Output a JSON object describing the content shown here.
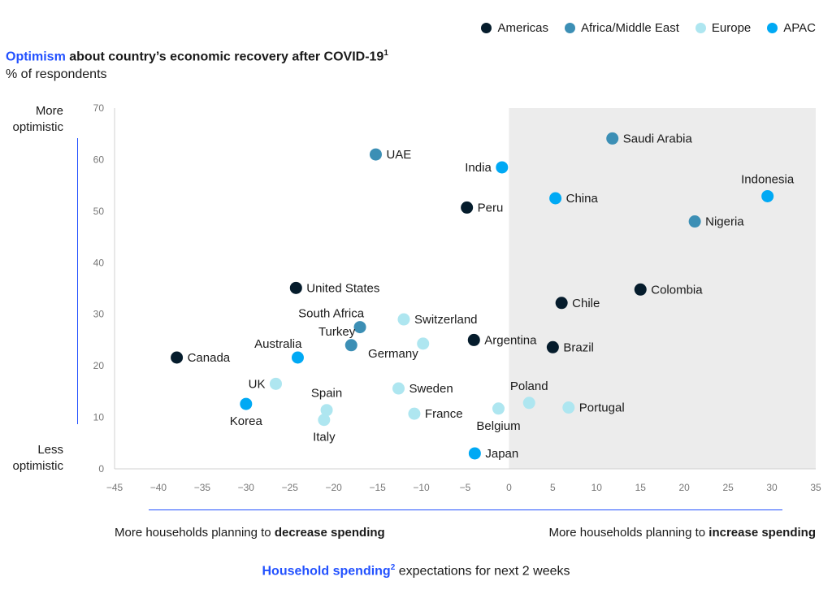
{
  "chart_data": {
    "type": "scatter",
    "title_highlight": "Optimism",
    "title_rest": " about country’s economic recovery after COVID-19",
    "title_sup": "1",
    "subtitle": "% of respondents",
    "y_top_label": "More optimistic",
    "y_bottom_label": "Less optimistic",
    "x_left_prefix": "More households planning to ",
    "x_left_bold": "decrease spending",
    "x_right_prefix": "More households planning to ",
    "x_right_bold": "increase spending",
    "xlabel_highlight": "Household spending",
    "xlabel_sup": "2",
    "xlabel_rest": " expectations for next 2 weeks",
    "xlim": [
      -45,
      35
    ],
    "ylim": [
      0,
      70
    ],
    "xticks": [
      -45,
      -40,
      -35,
      -30,
      -25,
      -20,
      -15,
      -10,
      -5,
      0,
      5,
      10,
      15,
      20,
      25,
      30,
      35
    ],
    "yticks": [
      0,
      10,
      20,
      30,
      40,
      50,
      60,
      70
    ],
    "xtick_labels": [
      "−45",
      "−40",
      "−35",
      "−30",
      "−25",
      "−20",
      "−15",
      "−10",
      "−5",
      "0",
      "5",
      "10",
      "15",
      "20",
      "25",
      "30",
      "35"
    ],
    "ytick_labels": [
      "0",
      "10",
      "20",
      "30",
      "40",
      "50",
      "60",
      "70"
    ],
    "shaded_region_x": [
      0,
      35
    ],
    "colors": {
      "Americas": "#051c2c",
      "Africa/Middle East": "#3c8fb5",
      "Europe": "#aee6f0",
      "APAC": "#00a9f4",
      "shade": "#ececec",
      "accent": "#2251ff"
    },
    "legend": [
      "Americas",
      "Africa/Middle East",
      "Europe",
      "APAC"
    ],
    "points": [
      {
        "label": "Saudi Arabia",
        "region": "Africa/Middle East",
        "x": 11.8,
        "y": 64.1,
        "pos": "right"
      },
      {
        "label": "UAE",
        "region": "Africa/Middle East",
        "x": -15.2,
        "y": 61.0,
        "pos": "right"
      },
      {
        "label": "India",
        "region": "APAC",
        "x": -0.8,
        "y": 58.5,
        "pos": "left"
      },
      {
        "label": "Indonesia",
        "region": "APAC",
        "x": 29.5,
        "y": 52.9,
        "pos": "above"
      },
      {
        "label": "China",
        "region": "APAC",
        "x": 5.3,
        "y": 52.5,
        "pos": "right"
      },
      {
        "label": "Peru",
        "region": "Americas",
        "x": -4.8,
        "y": 50.7,
        "pos": "right"
      },
      {
        "label": "Nigeria",
        "region": "Africa/Middle East",
        "x": 21.2,
        "y": 48.0,
        "pos": "right"
      },
      {
        "label": "United States",
        "region": "Americas",
        "x": -24.3,
        "y": 35.1,
        "pos": "right"
      },
      {
        "label": "Colombia",
        "region": "Americas",
        "x": 15.0,
        "y": 34.8,
        "pos": "right"
      },
      {
        "label": "Chile",
        "region": "Americas",
        "x": 6.0,
        "y": 32.2,
        "pos": "right"
      },
      {
        "label": "Switzerland",
        "region": "Europe",
        "x": -12.0,
        "y": 29.0,
        "pos": "right"
      },
      {
        "label": "South Africa",
        "region": "Africa/Middle East",
        "x": -17.0,
        "y": 27.5,
        "pos": "aboveleft"
      },
      {
        "label": "Argentina",
        "region": "Americas",
        "x": -4.0,
        "y": 25.0,
        "pos": "right"
      },
      {
        "label": "Germany",
        "region": "Europe",
        "x": -9.8,
        "y": 24.3,
        "pos": "belowleft"
      },
      {
        "label": "Turkey",
        "region": "Africa/Middle East",
        "x": -18.0,
        "y": 24.0,
        "pos": "aboveleft"
      },
      {
        "label": "Brazil",
        "region": "Americas",
        "x": 5.0,
        "y": 23.6,
        "pos": "right"
      },
      {
        "label": "Australia",
        "region": "APAC",
        "x": -24.1,
        "y": 21.6,
        "pos": "aboveleft"
      },
      {
        "label": "Canada",
        "region": "Americas",
        "x": -37.9,
        "y": 21.6,
        "pos": "right"
      },
      {
        "label": "UK",
        "region": "Europe",
        "x": -26.6,
        "y": 16.5,
        "pos": "left"
      },
      {
        "label": "Sweden",
        "region": "Europe",
        "x": -12.6,
        "y": 15.6,
        "pos": "right"
      },
      {
        "label": "Poland",
        "region": "Europe",
        "x": 2.3,
        "y": 12.8,
        "pos": "above"
      },
      {
        "label": "Korea",
        "region": "APAC",
        "x": -30.0,
        "y": 12.6,
        "pos": "below"
      },
      {
        "label": "Portugal",
        "region": "Europe",
        "x": 6.8,
        "y": 11.9,
        "pos": "right"
      },
      {
        "label": "Belgium",
        "region": "Europe",
        "x": -1.2,
        "y": 11.7,
        "pos": "below"
      },
      {
        "label": "Spain",
        "region": "Europe",
        "x": -20.8,
        "y": 11.4,
        "pos": "above"
      },
      {
        "label": "France",
        "region": "Europe",
        "x": -10.8,
        "y": 10.7,
        "pos": "right"
      },
      {
        "label": "Italy",
        "region": "Europe",
        "x": -21.1,
        "y": 9.5,
        "pos": "below"
      },
      {
        "label": "Japan",
        "region": "APAC",
        "x": -3.9,
        "y": 3.0,
        "pos": "right"
      }
    ]
  }
}
